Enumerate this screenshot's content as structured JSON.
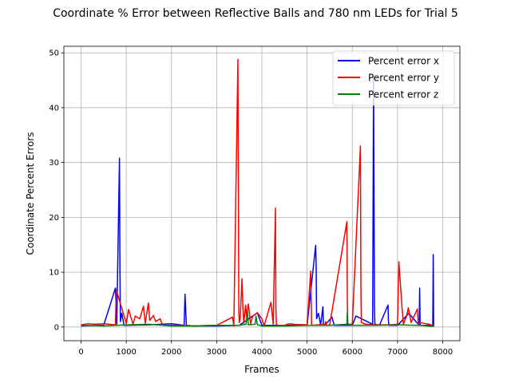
{
  "chart_data": {
    "type": "line",
    "title": "Coordinate % Error between Reflective Balls and 780 nm LEDs for Trial 5",
    "xlabel": "Frames",
    "ylabel": "Coordinate Percent Errors",
    "xlim": [
      -380,
      8380
    ],
    "ylim": [
      -2.5,
      51.2
    ],
    "xticks": [
      0,
      1000,
      2000,
      3000,
      4000,
      5000,
      6000,
      7000,
      8000
    ],
    "yticks": [
      0,
      10,
      20,
      30,
      40,
      50
    ],
    "grid": true,
    "legend_position": "top-right",
    "series": [
      {
        "name": "Percent error x",
        "color": "#0000ff",
        "x": [
          0,
          500,
          760,
          790,
          850,
          860,
          870,
          900,
          950,
          1500,
          2000,
          2280,
          2300,
          2330,
          2500,
          3000,
          3500,
          3900,
          4000,
          4500,
          5000,
          5190,
          5200,
          5210,
          5250,
          5300,
          5350,
          5360,
          5400,
          5550,
          5600,
          6000,
          6080,
          6450,
          6470,
          6490,
          6500,
          6600,
          6790,
          6800,
          6810,
          7000,
          7250,
          7480,
          7490,
          7500,
          7700,
          7780,
          7790,
          7800
        ],
        "values": [
          0.2,
          0.3,
          7.1,
          0.5,
          30.8,
          10.5,
          1.0,
          2.5,
          0.3,
          0.4,
          0.6,
          0.3,
          6.0,
          0.3,
          0.2,
          0.2,
          0.3,
          2.6,
          0.3,
          0.3,
          0.3,
          14.9,
          11.0,
          1.5,
          2.5,
          0.4,
          3.7,
          0.5,
          0.4,
          1.8,
          0.3,
          0.3,
          2.0,
          0.5,
          45.5,
          3.5,
          0.5,
          0.3,
          4.0,
          1.0,
          0.3,
          0.3,
          2.5,
          0.3,
          7.1,
          0.3,
          0.3,
          0.2,
          13.2,
          0.1
        ]
      },
      {
        "name": "Percent error y",
        "color": "#ff0000",
        "x": [
          0,
          150,
          300,
          500,
          760,
          780,
          1000,
          1050,
          1150,
          1200,
          1300,
          1380,
          1420,
          1490,
          1520,
          1600,
          1650,
          1750,
          1800,
          2000,
          2500,
          3000,
          3350,
          3380,
          3470,
          3490,
          3500,
          3520,
          3560,
          3580,
          3600,
          3640,
          3660,
          3700,
          3750,
          3800,
          3900,
          4000,
          4050,
          4200,
          4250,
          4300,
          4310,
          4320,
          4350,
          4500,
          4600,
          4700,
          5000,
          5080,
          5100,
          5400,
          5410,
          5420,
          5500,
          5880,
          5890,
          5900,
          6000,
          6180,
          6190,
          6200,
          6300,
          6500,
          6800,
          7000,
          7030,
          7050,
          7100,
          7130,
          7200,
          7240,
          7300,
          7440,
          7460,
          7500,
          7700,
          7800
        ],
        "values": [
          0.4,
          0.6,
          0.5,
          0.6,
          0.4,
          6.8,
          0.6,
          3.2,
          0.5,
          2.0,
          1.5,
          3.8,
          0.7,
          4.4,
          1.2,
          2.1,
          1.0,
          1.5,
          0.3,
          0.3,
          0.2,
          0.3,
          1.8,
          0.2,
          48.8,
          3.0,
          0.8,
          1.5,
          8.8,
          3.5,
          0.7,
          4.0,
          2.0,
          4.2,
          0.6,
          2.0,
          2.6,
          1.5,
          0.2,
          4.5,
          0.5,
          21.7,
          3.5,
          0.5,
          0.3,
          0.3,
          0.6,
          0.5,
          0.4,
          10.2,
          0.3,
          0.5,
          1.0,
          0.3,
          0.4,
          19.2,
          5.0,
          0.5,
          0.5,
          33.0,
          7.5,
          0.8,
          0.5,
          0.4,
          0.4,
          0.5,
          11.9,
          9.5,
          3.5,
          0.5,
          2.0,
          3.5,
          0.8,
          3.3,
          0.5,
          0.8,
          0.5,
          0.2
        ]
      },
      {
        "name": "Percent error z",
        "color": "#008000",
        "x": [
          0,
          500,
          1000,
          1500,
          2000,
          2500,
          3000,
          3500,
          3650,
          3680,
          3700,
          3850,
          3870,
          3900,
          4000,
          4500,
          5000,
          5500,
          5880,
          5890,
          5900,
          6000,
          6500,
          7000,
          7500,
          7800
        ],
        "values": [
          0.3,
          0.2,
          0.4,
          0.5,
          0.2,
          0.2,
          0.3,
          0.3,
          0.5,
          2.8,
          0.4,
          0.5,
          2.0,
          0.4,
          0.2,
          0.2,
          0.3,
          0.3,
          0.5,
          2.7,
          0.5,
          0.3,
          0.3,
          0.4,
          0.3,
          0.1
        ]
      }
    ]
  }
}
